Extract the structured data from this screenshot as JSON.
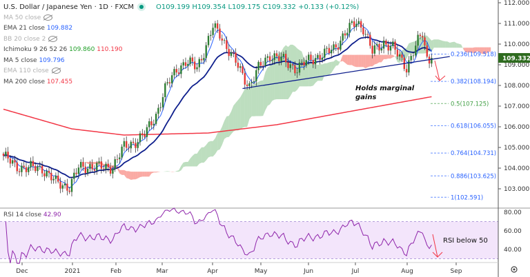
{
  "header": {
    "symbol": "U.S. Dollar / Japanese Yen · 1D · FXCM",
    "ohlc": "O109.199 H109.354 L109.175 C109.332 +0.133 (+0.12%)"
  },
  "indicators": [
    {
      "label": "MA 50 close",
      "hidden": true
    },
    {
      "label": "EMA 21 close",
      "value": "109.882"
    },
    {
      "label": "BB 20 close 2",
      "hidden": true
    },
    {
      "label": "Ichimoku 9 26 52 26",
      "value": "109.860",
      "value2": "110.190"
    },
    {
      "label": "MA 5 close",
      "value": "109.796"
    },
    {
      "label": "EMA 110 close",
      "hidden": true
    },
    {
      "label": "MA 200 close",
      "value": "107.455"
    }
  ],
  "colors": {
    "up": "#2e7d32",
    "down": "#e53935",
    "ema21": "#0d1e8c",
    "ma5": "#2962ff",
    "ma200": "#f23645",
    "cloud_up": "#43a047",
    "cloud_down": "#f44336",
    "rsi": "#8e24aa",
    "price_tag": "#2e6b1f"
  },
  "current_price": "109.332",
  "annotations": {
    "holds_line1": "Holds marginal",
    "holds_line2": "gains",
    "rsi_note": "RSI below 50"
  },
  "chart_data": {
    "type": "candlestick",
    "title": "U.S. Dollar / Japanese Yen · 1D · FXCM",
    "x_ticks": [
      "Dec",
      "2021",
      "Feb",
      "Mar",
      "Apr",
      "May",
      "Jun",
      "Jul",
      "Aug",
      "Sep"
    ],
    "y_ticks": [
      "112.000",
      "111.000",
      "110.000",
      "109.000",
      "108.000",
      "107.000",
      "106.000",
      "105.000",
      "104.000",
      "103.000"
    ],
    "ylim": [
      102.4,
      112.1
    ],
    "close_waypoints": [
      [
        0,
        104.6
      ],
      [
        5,
        104.1
      ],
      [
        11,
        104.0
      ],
      [
        17,
        104.0
      ],
      [
        23,
        103.3
      ],
      [
        29,
        103.1
      ],
      [
        33,
        104.0
      ],
      [
        38,
        104.1
      ],
      [
        44,
        104.0
      ],
      [
        48,
        104.1
      ],
      [
        53,
        105.0
      ],
      [
        58,
        105.3
      ],
      [
        62,
        105.6
      ],
      [
        67,
        106.6
      ],
      [
        71,
        107.8
      ],
      [
        76,
        108.8
      ],
      [
        80,
        109.1
      ],
      [
        85,
        108.9
      ],
      [
        89,
        109.9
      ],
      [
        92,
        110.8
      ],
      [
        95,
        110.5
      ],
      [
        100,
        109.5
      ],
      [
        105,
        108.5
      ],
      [
        108,
        108.0
      ],
      [
        112,
        108.8
      ],
      [
        117,
        109.5
      ],
      [
        123,
        109.2
      ],
      [
        129,
        108.8
      ],
      [
        135,
        109.3
      ],
      [
        141,
        109.5
      ],
      [
        145,
        109.8
      ],
      [
        150,
        110.5
      ],
      [
        155,
        111.1
      ],
      [
        158,
        110.8
      ],
      [
        162,
        109.6
      ],
      [
        167,
        110.1
      ],
      [
        171,
        109.8
      ],
      [
        177,
        108.9
      ],
      [
        182,
        110.1
      ],
      [
        184,
        110.5
      ],
      [
        186,
        109.3
      ],
      [
        188,
        109.332
      ]
    ],
    "ma200_waypoints": [
      [
        0,
        106.85
      ],
      [
        30,
        105.9
      ],
      [
        53,
        105.6
      ],
      [
        90,
        105.7
      ],
      [
        120,
        106.1
      ],
      [
        150,
        106.7
      ],
      [
        188,
        107.455
      ]
    ],
    "trendline": [
      [
        105,
        107.85
      ],
      [
        196,
        109.4
      ]
    ],
    "fib_levels": [
      {
        "label": "0.236(109.518)",
        "value": 109.518,
        "color": "#2962ff"
      },
      {
        "label": "0.382(108.194)",
        "value": 108.194,
        "color": "#2962ff"
      },
      {
        "label": "0.5(107.125)",
        "value": 107.125,
        "color": "#43a047"
      },
      {
        "label": "0.618(106.055)",
        "value": 106.055,
        "color": "#2962ff"
      },
      {
        "label": "0.764(104.731)",
        "value": 104.731,
        "color": "#2962ff"
      },
      {
        "label": "0.886(103.625)",
        "value": 103.625,
        "color": "#2962ff"
      },
      {
        "label": "1(102.591)",
        "value": 102.591,
        "color": "#2962ff"
      }
    ],
    "rsi": {
      "label": "RSI 14 close",
      "value": "42.90",
      "y_ticks": [
        "80.00",
        "60.00",
        "40.00"
      ],
      "band": [
        30,
        70
      ],
      "ylim": [
        25,
        85
      ]
    }
  }
}
